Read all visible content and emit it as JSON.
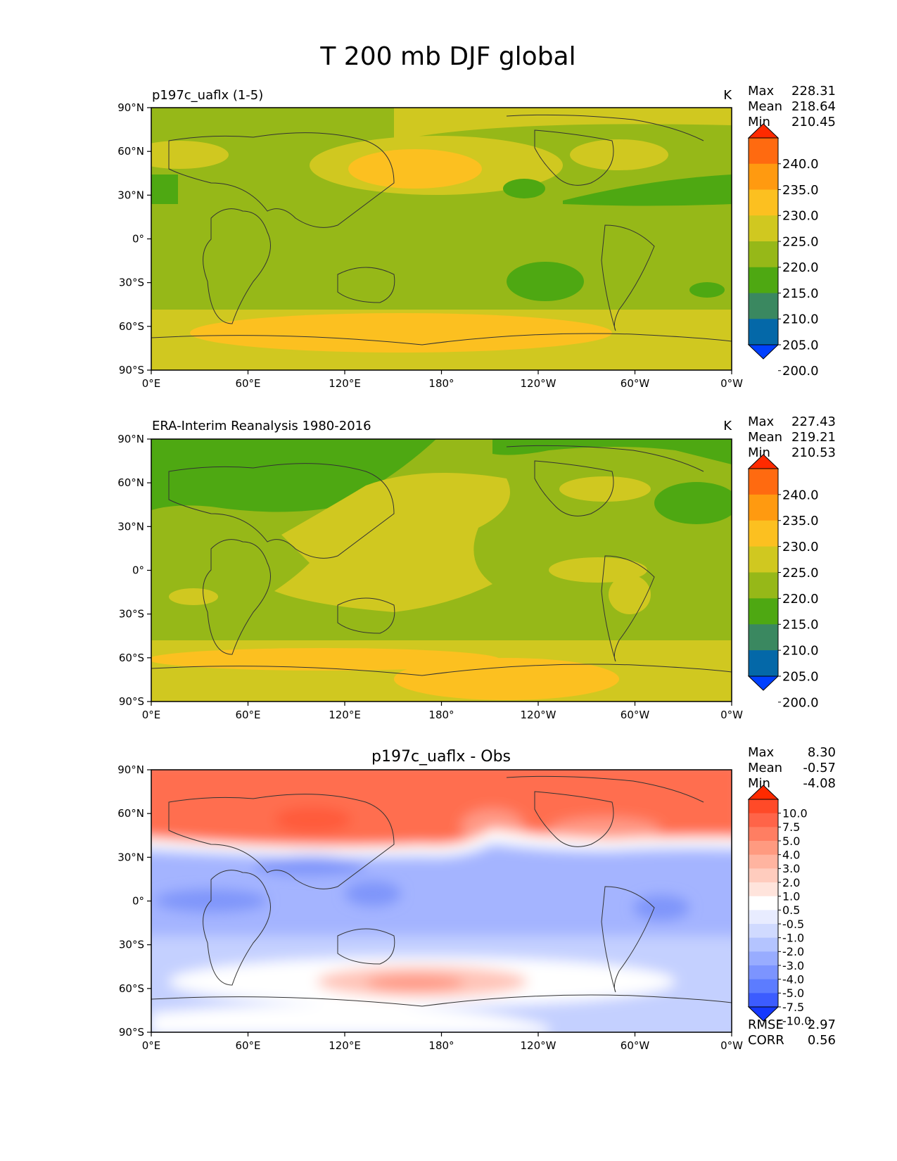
{
  "title": "T 200 mb DJF global",
  "chart_data": [
    {
      "type": "heatmap",
      "title": "p197c_uaflx (1-5)",
      "units": "K",
      "stats": {
        "max_label": "Max",
        "max": "228.31",
        "mean_label": "Mean",
        "mean": "218.64",
        "min_label": "Min",
        "min": "210.45"
      },
      "x_ticks": [
        "0°E",
        "60°E",
        "120°E",
        "180°",
        "120°W",
        "60°W",
        "0°W"
      ],
      "y_ticks": [
        "90°N",
        "60°N",
        "30°N",
        "0°",
        "30°S",
        "60°S",
        "90°S"
      ],
      "colorbar": {
        "labels": [
          "240.0",
          "235.0",
          "230.0",
          "225.0",
          "220.0",
          "215.0",
          "210.0",
          "205.0",
          "200.0"
        ],
        "colors": [
          "#ff2a00",
          "#ff6a10",
          "#ff9a10",
          "#fcc020",
          "#d0c820",
          "#96b818",
          "#4ea812",
          "#3a8860",
          "#0468a8",
          "#0040ff"
        ]
      },
      "field_colors": {
        "base": "#96b818",
        "high": "#d0c820",
        "higher": "#fcc020",
        "low": "#4ea812"
      }
    },
    {
      "type": "heatmap",
      "title": "ERA-Interim Reanalysis 1980-2016",
      "units": "K",
      "stats": {
        "max_label": "Max",
        "max": "227.43",
        "mean_label": "Mean",
        "mean": "219.21",
        "min_label": "Min",
        "min": "210.53"
      },
      "x_ticks": [
        "0°E",
        "60°E",
        "120°E",
        "180°",
        "120°W",
        "60°W",
        "0°W"
      ],
      "y_ticks": [
        "90°N",
        "60°N",
        "30°N",
        "0°",
        "30°S",
        "60°S",
        "90°S"
      ],
      "colorbar": {
        "labels": [
          "240.0",
          "235.0",
          "230.0",
          "225.0",
          "220.0",
          "215.0",
          "210.0",
          "205.0",
          "200.0"
        ],
        "colors": [
          "#ff2a00",
          "#ff6a10",
          "#ff9a10",
          "#fcc020",
          "#d0c820",
          "#96b818",
          "#4ea812",
          "#3a8860",
          "#0468a8",
          "#0040ff"
        ]
      },
      "field_colors": {
        "base": "#96b818",
        "high": "#d0c820",
        "higher": "#fcc020",
        "low": "#4ea812"
      }
    },
    {
      "type": "heatmap",
      "title": "p197c_uaflx - Obs",
      "units": "",
      "stats": {
        "max_label": "Max",
        "max": "8.30",
        "mean_label": "Mean",
        "mean": "-0.57",
        "min_label": "Min",
        "min": "-4.08"
      },
      "x_ticks": [
        "0°E",
        "60°E",
        "120°E",
        "180°",
        "120°W",
        "60°W",
        "0°W"
      ],
      "y_ticks": [
        "90°N",
        "60°N",
        "30°N",
        "0°",
        "30°S",
        "60°S",
        "90°S"
      ],
      "colorbar": {
        "labels": [
          "10.0",
          "7.5",
          "5.0",
          "4.0",
          "3.0",
          "2.0",
          "1.0",
          "0.5",
          "-0.5",
          "-1.0",
          "-2.0",
          "-3.0",
          "-4.0",
          "-5.0",
          "-7.5",
          "-10.0"
        ],
        "colors": [
          "#ff2a00",
          "#ff4a28",
          "#ff6448",
          "#ff7e62",
          "#ff9a80",
          "#ffb4a0",
          "#ffccbe",
          "#ffe4dc",
          "#ffffff",
          "#e8ecff",
          "#d0daff",
          "#b4c4ff",
          "#98acff",
          "#7c94ff",
          "#5c7cff",
          "#3c5cff",
          "#1438ff"
        ]
      },
      "field_colors": {
        "base": "#a4b4ff",
        "deep_blue": "#7f95fa",
        "light_blue": "#c4d0ff",
        "white": "#ffffff",
        "pink": "#ffc4b8",
        "salmon": "#ff9a86",
        "red": "#ff6e50",
        "deep_red": "#ff5a3a"
      },
      "metrics": {
        "rmse_label": "RMSE",
        "rmse": "2.97",
        "corr_label": "CORR",
        "corr": "0.56"
      }
    }
  ]
}
